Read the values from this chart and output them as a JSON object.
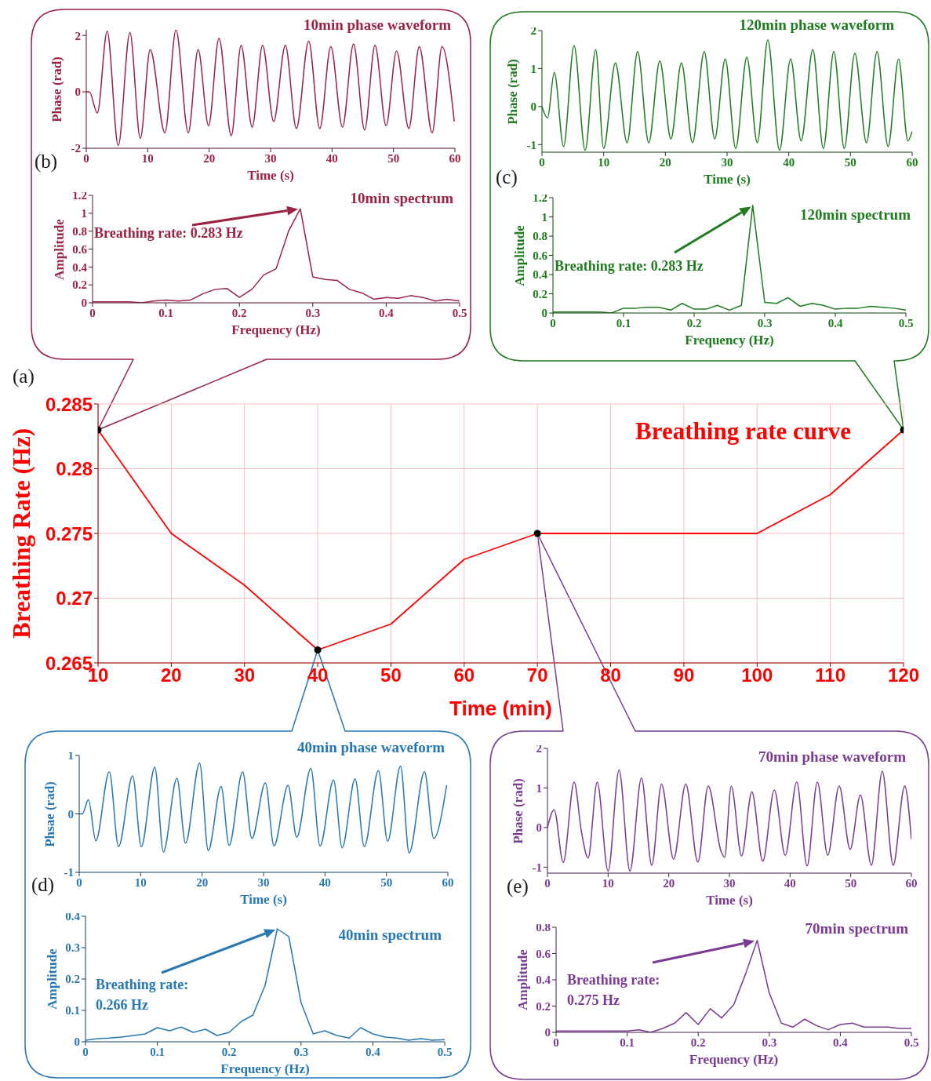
{
  "chart_data": [
    {
      "type": "line",
      "title": "10min phase waveform",
      "xlabel": "Time (s)",
      "ylabel": "Phase (rad)",
      "color": "#9b2242",
      "annotations": [
        "(b)"
      ],
      "x": [
        0,
        0.5,
        1.8,
        3.4,
        5.2,
        7.1,
        8.8,
        10.4,
        12.8,
        14.6,
        16.6,
        18.2,
        19.9,
        21.6,
        23.6,
        25.2,
        27.0,
        28.7,
        30.5,
        32.4,
        34.2,
        36.2,
        38.0,
        39.8,
        41.7,
        43.5,
        45.3,
        47.0,
        48.8,
        50.5,
        52.5,
        54.2,
        56.3,
        57.9,
        59.9
      ],
      "values": [
        0,
        0,
        -0.75,
        2.15,
        -1.9,
        2.1,
        -1.65,
        1.5,
        -1.45,
        2.2,
        -1.45,
        1.5,
        -1.2,
        1.9,
        -1.55,
        1.65,
        -1.25,
        1.65,
        -1.05,
        1.65,
        -1.3,
        1.8,
        -1.3,
        1.6,
        -1.25,
        1.7,
        -1.35,
        1.65,
        -1.2,
        1.45,
        -1.3,
        1.6,
        -1.45,
        1.6,
        -1.05
      ],
      "xlim": [
        0,
        60
      ],
      "xticks": [
        0,
        10,
        20,
        30,
        40,
        50,
        60
      ],
      "ylim": [
        -2,
        2.2
      ],
      "yticks": [
        -2,
        0,
        2
      ]
    },
    {
      "type": "line",
      "title": "10min spectrum",
      "xlabel": "Frequency (Hz)",
      "ylabel": "Amplitude",
      "color": "#9b2242",
      "annotations": [
        "Breathing rate: 0.283 Hz"
      ],
      "x": [
        0,
        0.017,
        0.033,
        0.05,
        0.067,
        0.083,
        0.1,
        0.117,
        0.133,
        0.15,
        0.167,
        0.183,
        0.2,
        0.217,
        0.233,
        0.25,
        0.267,
        0.283,
        0.3,
        0.317,
        0.333,
        0.35,
        0.367,
        0.383,
        0.4,
        0.417,
        0.433,
        0.45,
        0.467,
        0.483,
        0.5
      ],
      "values": [
        0.01,
        0.01,
        0.01,
        0.01,
        0.0,
        0.02,
        0.03,
        0.02,
        0.03,
        0.1,
        0.15,
        0.16,
        0.06,
        0.15,
        0.31,
        0.38,
        0.8,
        1.05,
        0.29,
        0.26,
        0.25,
        0.15,
        0.11,
        0.04,
        0.06,
        0.05,
        0.08,
        0.06,
        0.02,
        0.04,
        0.02
      ],
      "xlim": [
        0,
        0.5
      ],
      "xticks": [
        0,
        0.1,
        0.2,
        0.3,
        0.4,
        0.5
      ],
      "ylim": [
        0,
        1.2
      ],
      "yticks": [
        0,
        0.2,
        0.4,
        0.6,
        0.8,
        1,
        1.2
      ]
    },
    {
      "type": "line",
      "title": "120min phase waveform",
      "xlabel": "Time (s)",
      "ylabel": "Phase (rad)",
      "color": "#1e7b1e",
      "annotations": [
        "(c)"
      ],
      "x": [
        0,
        0.9,
        2.0,
        3.5,
        5.2,
        7.0,
        8.7,
        10.0,
        11.9,
        13.8,
        15.5,
        17.3,
        19.1,
        20.9,
        22.6,
        24.4,
        26.3,
        28.0,
        29.7,
        31.4,
        33.2,
        34.9,
        36.6,
        38.5,
        40.3,
        42.0,
        43.9,
        45.6,
        47.3,
        49.0,
        50.7,
        52.6,
        54.3,
        56.1,
        57.8,
        59.3,
        60
      ],
      "values": [
        0,
        -0.3,
        0.9,
        -1.05,
        1.6,
        -1.15,
        1.5,
        -1.1,
        1.15,
        -0.95,
        1.45,
        -0.95,
        1.2,
        -0.85,
        1.15,
        -0.95,
        1.45,
        -0.85,
        1.25,
        -1.1,
        1.3,
        -0.95,
        1.75,
        -1.15,
        1.25,
        -0.9,
        1.5,
        -1.1,
        1.45,
        -1.1,
        1.4,
        -0.95,
        1.45,
        -1.05,
        1.25,
        -0.9,
        -0.65
      ],
      "xlim": [
        0,
        60
      ],
      "xticks": [
        0,
        10,
        20,
        30,
        40,
        50,
        60
      ],
      "ylim": [
        -1.2,
        2
      ],
      "yticks": [
        -1,
        0,
        1,
        2
      ]
    },
    {
      "type": "line",
      "title": "120min spectrum",
      "xlabel": "Frequency (Hz)",
      "ylabel": "Amplitude",
      "color": "#1e7b1e",
      "annotations": [
        "Breathing rate: 0.283 Hz"
      ],
      "x": [
        0,
        0.017,
        0.033,
        0.05,
        0.067,
        0.083,
        0.1,
        0.117,
        0.133,
        0.15,
        0.167,
        0.183,
        0.2,
        0.217,
        0.233,
        0.25,
        0.267,
        0.283,
        0.3,
        0.317,
        0.333,
        0.35,
        0.367,
        0.383,
        0.4,
        0.417,
        0.433,
        0.45,
        0.467,
        0.483,
        0.5
      ],
      "values": [
        0.01,
        0.01,
        0.01,
        0.01,
        0.01,
        0.0,
        0.05,
        0.05,
        0.06,
        0.06,
        0.03,
        0.1,
        0.04,
        0.04,
        0.08,
        0.03,
        0.08,
        1.12,
        0.11,
        0.1,
        0.16,
        0.07,
        0.1,
        0.08,
        0.04,
        0.05,
        0.05,
        0.07,
        0.06,
        0.05,
        0.03
      ],
      "xlim": [
        0,
        0.5
      ],
      "xticks": [
        0,
        0.1,
        0.2,
        0.3,
        0.4,
        0.5
      ],
      "ylim": [
        0,
        1.2
      ],
      "yticks": [
        0,
        0.2,
        0.4,
        0.6,
        0.8,
        1,
        1.2
      ]
    },
    {
      "type": "line",
      "title": "Breathing rate curve",
      "xlabel": "Time (min)",
      "ylabel": "Breathing Rate (Hz)",
      "annotations": [
        "(a)"
      ],
      "grid": true,
      "x": [
        10,
        20,
        30,
        40,
        50,
        60,
        70,
        80,
        90,
        100,
        110,
        120
      ],
      "series": [
        {
          "color": "#ff0000",
          "values": [
            0.283,
            0.275,
            0.271,
            0.266,
            0.268,
            0.273,
            0.275,
            0.275,
            0.275,
            0.275,
            0.278,
            0.283
          ]
        },
        {
          "type": "scatter",
          "color": "#000000",
          "marker": "circle",
          "x": [
            10,
            40,
            70,
            120
          ],
          "values": [
            0.283,
            0.266,
            0.275,
            0.283
          ]
        }
      ],
      "xlim": [
        10,
        120
      ],
      "xticks": [
        10,
        20,
        30,
        40,
        50,
        60,
        70,
        80,
        90,
        100,
        110,
        120
      ],
      "ylim": [
        0.265,
        0.285
      ],
      "yticks": [
        0.265,
        0.27,
        0.275,
        0.28,
        0.285
      ]
    },
    {
      "type": "line",
      "title": "40min phase waveform",
      "xlabel": "Time (s)",
      "ylabel": "Phsae (rad)",
      "color": "#2677b3",
      "annotations": [
        "(d)"
      ],
      "x": [
        0,
        0.5,
        1.5,
        2.7,
        4.9,
        6.4,
        8.7,
        10.1,
        12.3,
        13.7,
        15.9,
        17.3,
        19.6,
        21.0,
        23.1,
        24.4,
        26.6,
        28.1,
        30.3,
        31.7,
        34.0,
        35.4,
        37.7,
        39.2,
        41.4,
        42.8,
        44.9,
        46.4,
        48.7,
        50.2,
        52.3,
        53.7,
        56.2,
        57.7,
        59.8
      ],
      "values": [
        0,
        0,
        0.24,
        -0.46,
        0.72,
        -0.56,
        0.65,
        -0.56,
        0.8,
        -0.65,
        0.61,
        -0.5,
        0.87,
        -0.63,
        0.47,
        -0.54,
        0.72,
        -0.42,
        0.53,
        -0.55,
        0.49,
        -0.4,
        0.78,
        -0.55,
        0.58,
        -0.58,
        0.6,
        -0.56,
        0.74,
        -0.47,
        0.82,
        -0.67,
        0.72,
        -0.42,
        0.49
      ],
      "xlim": [
        0,
        60
      ],
      "xticks": [
        0,
        10,
        20,
        30,
        40,
        50,
        60
      ],
      "ylim": [
        -1,
        1
      ],
      "yticks": [
        -1,
        0,
        1
      ]
    },
    {
      "type": "line",
      "title": "40min spectrum",
      "xlabel": "Frequency (Hz)",
      "ylabel": "Amplitude",
      "color": "#2677b3",
      "annotations": [
        "Breathing rate: 0.266 Hz"
      ],
      "x": [
        0,
        0.017,
        0.033,
        0.05,
        0.067,
        0.083,
        0.1,
        0.117,
        0.133,
        0.15,
        0.167,
        0.183,
        0.2,
        0.217,
        0.233,
        0.25,
        0.267,
        0.283,
        0.3,
        0.317,
        0.333,
        0.35,
        0.367,
        0.383,
        0.4,
        0.417,
        0.433,
        0.45,
        0.467,
        0.483,
        0.5
      ],
      "values": [
        0.005,
        0.01,
        0.012,
        0.015,
        0.02,
        0.025,
        0.045,
        0.035,
        0.047,
        0.03,
        0.04,
        0.02,
        0.03,
        0.065,
        0.085,
        0.18,
        0.36,
        0.335,
        0.125,
        0.025,
        0.035,
        0.02,
        0.012,
        0.045,
        0.025,
        0.015,
        0.012,
        0.005,
        0.01,
        0.005,
        0.007
      ],
      "xlim": [
        0,
        0.5
      ],
      "xticks": [
        0,
        0.1,
        0.2,
        0.3,
        0.4,
        0.5
      ],
      "ylim": [
        0,
        0.4
      ],
      "yticks": [
        0,
        0.1,
        0.2,
        0.3,
        0.4
      ]
    },
    {
      "type": "line",
      "title": "70min phase waveform",
      "xlabel": "Time (s)",
      "ylabel": "Phase (rad)",
      "color": "#7a3a92",
      "annotations": [
        "(e)"
      ],
      "x": [
        0,
        1.1,
        2.6,
        4.4,
        5.6,
        6.7,
        8.2,
        10.0,
        11.8,
        13.6,
        15.5,
        17.2,
        18.8,
        20.8,
        22.8,
        24.8,
        26.5,
        28.6,
        29.2,
        30.3,
        32.0,
        33.7,
        35.5,
        37.4,
        39.2,
        41.1,
        42.8,
        44.5,
        46.2,
        48.1,
        49.9,
        51.6,
        53.4,
        55.2,
        57.0,
        58.9,
        60
      ],
      "values": [
        0,
        0.45,
        -0.88,
        1.15,
        -0.1,
        -0.77,
        1.15,
        -1.1,
        1.45,
        -1.1,
        1.25,
        -0.95,
        1.1,
        -0.8,
        1.1,
        -0.87,
        1.05,
        -0.59,
        -0.75,
        1.05,
        -0.72,
        0.9,
        -0.85,
        0.95,
        -0.7,
        1.15,
        -0.97,
        1.15,
        -0.7,
        1.05,
        -0.55,
        0.82,
        -0.95,
        1.42,
        -0.95,
        1.05,
        -0.3
      ],
      "xlim": [
        0,
        60
      ],
      "xticks": [
        0,
        10,
        20,
        30,
        40,
        50,
        60
      ],
      "ylim": [
        -1.15,
        2
      ],
      "yticks": [
        -1,
        0,
        1,
        2
      ]
    },
    {
      "type": "line",
      "title": "70min spectrum",
      "xlabel": "Frequency (Hz)",
      "ylabel": "Amplitude",
      "color": "#7a3a92",
      "annotations": [
        "Breathing rate: 0.275 Hz"
      ],
      "x": [
        0,
        0.017,
        0.033,
        0.05,
        0.067,
        0.083,
        0.1,
        0.117,
        0.133,
        0.15,
        0.167,
        0.183,
        0.2,
        0.217,
        0.233,
        0.25,
        0.267,
        0.283,
        0.3,
        0.317,
        0.333,
        0.35,
        0.367,
        0.383,
        0.4,
        0.417,
        0.433,
        0.45,
        0.467,
        0.483,
        0.5
      ],
      "values": [
        0.01,
        0.01,
        0.01,
        0.01,
        0.01,
        0.01,
        0.01,
        0.02,
        0.0,
        0.03,
        0.07,
        0.15,
        0.06,
        0.18,
        0.11,
        0.21,
        0.45,
        0.7,
        0.3,
        0.07,
        0.04,
        0.1,
        0.05,
        0.02,
        0.06,
        0.07,
        0.04,
        0.04,
        0.04,
        0.03,
        0.03
      ],
      "xlim": [
        0,
        0.5
      ],
      "xticks": [
        0,
        0.1,
        0.2,
        0.3,
        0.4,
        0.5
      ],
      "ylim": [
        0,
        0.8
      ],
      "yticks": [
        0,
        0.2,
        0.4,
        0.6,
        0.8
      ]
    }
  ]
}
